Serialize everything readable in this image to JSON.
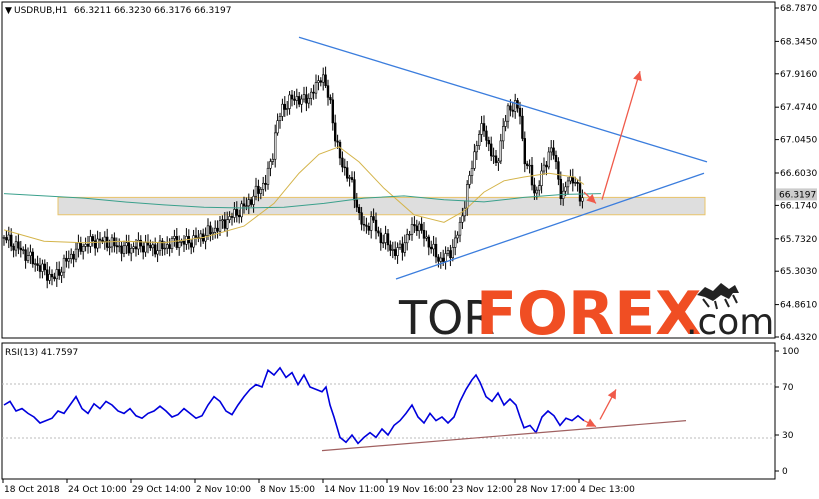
{
  "chart_data": [
    {
      "type": "candlestick",
      "symbol_label": "USDRUB,H1",
      "ohlc_label": "66.3211 66.3230 66.3176 66.3197",
      "current_price_label": "66.3197",
      "price_ticks": [
        "68.7870",
        "68.3450",
        "67.9160",
        "67.4740",
        "67.0450",
        "66.6030",
        "66.1740",
        "65.7320",
        "65.3030",
        "64.8610",
        "64.4320"
      ],
      "price_tick_values": [
        68.787,
        68.345,
        67.916,
        67.474,
        67.045,
        66.603,
        66.174,
        65.732,
        65.303,
        64.861,
        64.432
      ],
      "ylim": [
        64.432,
        68.787
      ],
      "time_ticks": [
        "18 Oct 2018",
        "24 Oct 10:00",
        "29 Oct 14:00",
        "2 Nov 10:00",
        "8 Nov 15:00",
        "14 Nov 11:00",
        "19 Nov 16:00",
        "23 Nov 12:00",
        "28 Nov 17:00",
        "4 Dec 13:00"
      ],
      "close_path": [
        [
          0,
          65.75
        ],
        [
          20,
          65.55
        ],
        [
          40,
          65.3
        ],
        [
          50,
          65.2
        ],
        [
          60,
          65.4
        ],
        [
          70,
          65.55
        ],
        [
          80,
          65.65
        ],
        [
          90,
          65.7
        ],
        [
          100,
          65.7
        ],
        [
          110,
          65.65
        ],
        [
          120,
          65.6
        ],
        [
          130,
          65.62
        ],
        [
          140,
          65.65
        ],
        [
          150,
          65.6
        ],
        [
          160,
          65.62
        ],
        [
          170,
          65.7
        ],
        [
          180,
          65.68
        ],
        [
          190,
          65.72
        ],
        [
          200,
          65.78
        ],
        [
          210,
          65.85
        ],
        [
          220,
          65.95
        ],
        [
          230,
          66.05
        ],
        [
          240,
          66.15
        ],
        [
          250,
          66.3
        ],
        [
          262,
          66.5
        ],
        [
          268,
          66.8
        ],
        [
          272,
          67.2
        ],
        [
          278,
          67.45
        ],
        [
          285,
          67.55
        ],
        [
          292,
          67.6
        ],
        [
          300,
          67.55
        ],
        [
          307,
          67.65
        ],
        [
          313,
          67.75
        ],
        [
          318,
          67.95
        ],
        [
          322,
          67.7
        ],
        [
          327,
          67.5
        ],
        [
          332,
          67.0
        ],
        [
          337,
          66.75
        ],
        [
          343,
          66.6
        ],
        [
          349,
          66.4
        ],
        [
          354,
          66.1
        ],
        [
          360,
          65.85
        ],
        [
          368,
          66.0
        ],
        [
          375,
          65.75
        ],
        [
          382,
          65.7
        ],
        [
          390,
          65.55
        ],
        [
          397,
          65.6
        ],
        [
          405,
          65.8
        ],
        [
          412,
          65.95
        ],
        [
          418,
          65.8
        ],
        [
          424,
          65.7
        ],
        [
          430,
          65.55
        ],
        [
          436,
          65.45
        ],
        [
          443,
          65.5
        ],
        [
          450,
          65.65
        ],
        [
          456,
          65.9
        ],
        [
          462,
          66.3
        ],
        [
          468,
          66.7
        ],
        [
          474,
          67.1
        ],
        [
          480,
          67.2
        ],
        [
          486,
          66.9
        ],
        [
          492,
          66.7
        ],
        [
          498,
          67.1
        ],
        [
          504,
          67.45
        ],
        [
          510,
          67.5
        ],
        [
          516,
          67.4
        ],
        [
          520,
          66.8
        ],
        [
          526,
          66.6
        ],
        [
          532,
          66.3
        ],
        [
          538,
          66.6
        ],
        [
          544,
          66.85
        ],
        [
          549,
          66.9
        ],
        [
          554,
          66.6
        ],
        [
          558,
          66.2
        ],
        [
          564,
          66.55
        ],
        [
          570,
          66.5
        ],
        [
          576,
          66.3
        ],
        [
          580,
          66.32
        ]
      ],
      "ma_fast_path": [
        [
          0,
          65.85
        ],
        [
          40,
          65.7
        ],
        [
          80,
          65.68
        ],
        [
          120,
          65.7
        ],
        [
          160,
          65.68
        ],
        [
          200,
          65.75
        ],
        [
          240,
          65.9
        ],
        [
          270,
          66.2
        ],
        [
          295,
          66.6
        ],
        [
          315,
          66.85
        ],
        [
          335,
          66.95
        ],
        [
          355,
          66.75
        ],
        [
          380,
          66.4
        ],
        [
          410,
          66.05
        ],
        [
          440,
          65.95
        ],
        [
          460,
          66.1
        ],
        [
          480,
          66.35
        ],
        [
          500,
          66.5
        ],
        [
          520,
          66.55
        ],
        [
          545,
          66.6
        ],
        [
          570,
          66.55
        ],
        [
          580,
          66.45
        ]
      ],
      "ma_slow_path": [
        [
          0,
          66.33
        ],
        [
          40,
          66.3
        ],
        [
          80,
          66.27
        ],
        [
          120,
          66.22
        ],
        [
          160,
          66.18
        ],
        [
          200,
          66.15
        ],
        [
          240,
          66.14
        ],
        [
          280,
          66.15
        ],
        [
          320,
          66.2
        ],
        [
          360,
          66.27
        ],
        [
          400,
          66.3
        ],
        [
          440,
          66.25
        ],
        [
          480,
          66.22
        ],
        [
          520,
          66.28
        ],
        [
          560,
          66.32
        ],
        [
          597,
          66.33
        ]
      ],
      "support_zone": [
        66.05,
        66.28
      ],
      "triangle_upper": [
        [
          295,
          68.4
        ],
        [
          703,
          66.75
        ]
      ],
      "triangle_lower": [
        [
          392,
          65.2
        ],
        [
          700,
          66.6
        ]
      ],
      "forecast_arrows": [
        {
          "from": [
            580,
            66.35
          ],
          "to": [
            592,
            66.2
          ]
        },
        {
          "from": [
            598,
            66.25
          ],
          "to": [
            636,
            67.95
          ]
        }
      ]
    },
    {
      "type": "line",
      "indicator_label": "RSI(13) 41.7597",
      "ylim": [
        0,
        100
      ],
      "y_ticks": [
        "100",
        "70",
        "30",
        "0"
      ],
      "y_tick_values": [
        100,
        70,
        30,
        0
      ],
      "values": [
        [
          0,
          55
        ],
        [
          6,
          58
        ],
        [
          12,
          50
        ],
        [
          18,
          52
        ],
        [
          24,
          48
        ],
        [
          30,
          45
        ],
        [
          36,
          40
        ],
        [
          42,
          42
        ],
        [
          48,
          44
        ],
        [
          54,
          50
        ],
        [
          60,
          48
        ],
        [
          66,
          55
        ],
        [
          72,
          62
        ],
        [
          78,
          52
        ],
        [
          84,
          48
        ],
        [
          90,
          56
        ],
        [
          96,
          52
        ],
        [
          102,
          58
        ],
        [
          108,
          55
        ],
        [
          114,
          50
        ],
        [
          120,
          48
        ],
        [
          126,
          52
        ],
        [
          132,
          46
        ],
        [
          138,
          44
        ],
        [
          144,
          48
        ],
        [
          150,
          50
        ],
        [
          156,
          54
        ],
        [
          162,
          50
        ],
        [
          168,
          45
        ],
        [
          174,
          47
        ],
        [
          180,
          52
        ],
        [
          186,
          48
        ],
        [
          192,
          44
        ],
        [
          198,
          46
        ],
        [
          204,
          55
        ],
        [
          210,
          62
        ],
        [
          216,
          58
        ],
        [
          222,
          50
        ],
        [
          228,
          47
        ],
        [
          234,
          55
        ],
        [
          240,
          62
        ],
        [
          246,
          68
        ],
        [
          252,
          72
        ],
        [
          258,
          70
        ],
        [
          264,
          84
        ],
        [
          270,
          80
        ],
        [
          276,
          86
        ],
        [
          282,
          78
        ],
        [
          288,
          82
        ],
        [
          294,
          72
        ],
        [
          300,
          80
        ],
        [
          306,
          70
        ],
        [
          312,
          68
        ],
        [
          318,
          66
        ],
        [
          322,
          70
        ],
        [
          326,
          55
        ],
        [
          330,
          45
        ],
        [
          336,
          28
        ],
        [
          342,
          24
        ],
        [
          348,
          30
        ],
        [
          354,
          23
        ],
        [
          360,
          28
        ],
        [
          366,
          32
        ],
        [
          372,
          28
        ],
        [
          378,
          35
        ],
        [
          384,
          30
        ],
        [
          390,
          38
        ],
        [
          396,
          42
        ],
        [
          402,
          48
        ],
        [
          408,
          55
        ],
        [
          414,
          45
        ],
        [
          420,
          40
        ],
        [
          426,
          48
        ],
        [
          432,
          42
        ],
        [
          438,
          45
        ],
        [
          444,
          40
        ],
        [
          450,
          45
        ],
        [
          456,
          58
        ],
        [
          462,
          68
        ],
        [
          468,
          76
        ],
        [
          472,
          80
        ],
        [
          476,
          74
        ],
        [
          482,
          62
        ],
        [
          488,
          58
        ],
        [
          494,
          65
        ],
        [
          500,
          55
        ],
        [
          506,
          60
        ],
        [
          512,
          55
        ],
        [
          516,
          45
        ],
        [
          520,
          36
        ],
        [
          526,
          38
        ],
        [
          532,
          32
        ],
        [
          538,
          45
        ],
        [
          544,
          50
        ],
        [
          550,
          46
        ],
        [
          556,
          38
        ],
        [
          562,
          44
        ],
        [
          568,
          42
        ],
        [
          574,
          46
        ],
        [
          580,
          42
        ]
      ],
      "trendline": [
        [
          318,
          17
        ],
        [
          682,
          42
        ]
      ],
      "forecast_arrows": [
        {
          "from": [
            580,
            42
          ],
          "to": [
            592,
            37
          ]
        },
        {
          "from": [
            596,
            43
          ],
          "to": [
            612,
            68
          ]
        }
      ]
    }
  ],
  "colors": {
    "candle": "#000000",
    "ma_fast": "#d4b44a",
    "ma_slow": "#3aa08c",
    "trendline": "#3b7ddd",
    "zone_fill": "#d8d8d8",
    "zone_border": "#e9c46a",
    "arrow": "#f05a4a",
    "rsi": "#0000dd",
    "rsi_trend": "#a06060",
    "price_badge": "#cccccc"
  },
  "watermark": {
    "tor": "TOR",
    "forex": "FOREX",
    "com": ".com",
    "logo_icon": "bull-bear-icon"
  }
}
